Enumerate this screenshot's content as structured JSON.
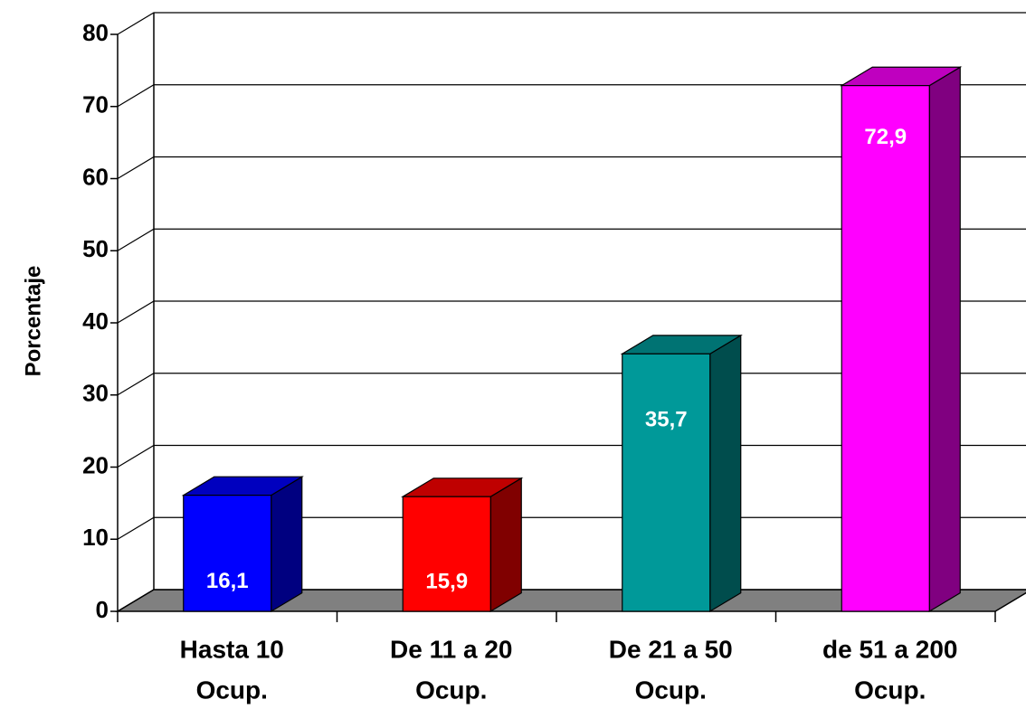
{
  "chart_data": {
    "type": "bar3d",
    "ylabel": "Porcentaje",
    "categories": [
      [
        "Hasta 10",
        "Ocup."
      ],
      [
        "De 11 a 20",
        "Ocup."
      ],
      [
        "De 21 a 50",
        "Ocup."
      ],
      [
        "de 51 a 200",
        "Ocup."
      ]
    ],
    "values": [
      16.1,
      15.9,
      35.7,
      72.9
    ],
    "value_labels": [
      "16,1",
      "15,9",
      "35,7",
      "72,9"
    ],
    "colors": [
      "#0000ff",
      "#ff0000",
      "#009999",
      "#ff00ff"
    ],
    "ylim": [
      0,
      80
    ],
    "yticks": [
      0,
      10,
      20,
      30,
      40,
      50,
      60,
      70,
      80
    ],
    "grid": true
  }
}
